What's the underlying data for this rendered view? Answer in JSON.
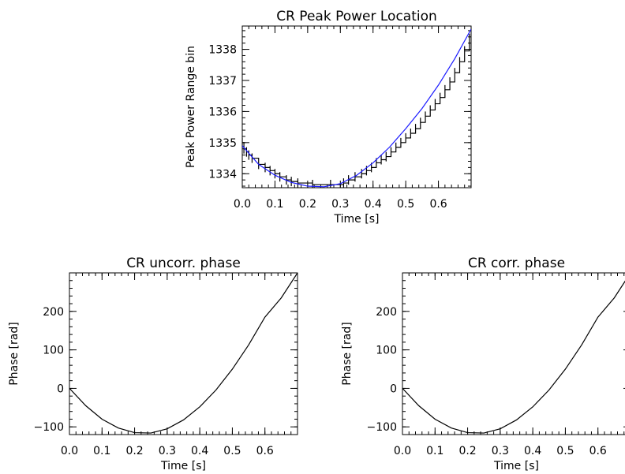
{
  "chart_data": [
    {
      "type": "line",
      "title": "CR Peak Power Location",
      "xlabel": "Time [s]",
      "ylabel": "Peak Power Range bin",
      "xlim": [
        0.0,
        0.7
      ],
      "ylim": [
        1333.55,
        1338.75
      ],
      "xticks": [
        0.0,
        0.1,
        0.2,
        0.3,
        0.4,
        0.5,
        0.6
      ],
      "xtick_labels": [
        "0.0",
        "0.1",
        "0.2",
        "0.3",
        "0.4",
        "0.5",
        "0.6"
      ],
      "yticks": [
        1334,
        1335,
        1336,
        1337,
        1338
      ],
      "ytick_labels": [
        "1334",
        "1335",
        "1336",
        "1337",
        "1338"
      ],
      "series": [
        {
          "color": "#000000",
          "x": [
            0.0,
            0.005,
            0.013,
            0.02,
            0.03,
            0.05,
            0.07,
            0.085,
            0.1,
            0.115,
            0.135,
            0.15,
            0.17,
            0.215,
            0.27,
            0.31,
            0.325,
            0.345,
            0.365,
            0.38,
            0.395,
            0.41,
            0.425,
            0.44,
            0.455,
            0.47,
            0.485,
            0.5,
            0.515,
            0.53,
            0.545,
            0.56,
            0.575,
            0.59,
            0.605,
            0.62,
            0.635,
            0.65,
            0.665,
            0.68,
            0.695
          ],
          "y": [
            1335,
            1334.8,
            1334.7,
            1334.6,
            1334.5,
            1334.3,
            1334.2,
            1334.1,
            1334.0,
            1333.9,
            1333.8,
            1333.75,
            1333.7,
            1333.65,
            1333.65,
            1333.7,
            1333.8,
            1333.9,
            1334.0,
            1334.1,
            1334.2,
            1334.35,
            1334.45,
            1334.55,
            1334.7,
            1334.85,
            1335.0,
            1335.15,
            1335.3,
            1335.45,
            1335.65,
            1335.85,
            1336.05,
            1336.25,
            1336.45,
            1336.7,
            1336.95,
            1337.25,
            1337.6,
            1337.95,
            1338.35
          ]
        },
        {
          "color": "#1a1aff",
          "x": [
            0.0,
            0.05,
            0.1,
            0.15,
            0.2,
            0.25,
            0.3,
            0.35,
            0.4,
            0.45,
            0.5,
            0.55,
            0.6,
            0.65,
            0.7
          ],
          "y": [
            1334.9,
            1334.3,
            1333.95,
            1333.72,
            1333.6,
            1333.58,
            1333.68,
            1333.95,
            1334.35,
            1334.85,
            1335.45,
            1336.1,
            1336.85,
            1337.7,
            1338.65
          ]
        }
      ]
    },
    {
      "type": "line",
      "title": "CR uncorr. phase",
      "xlabel": "Time [s]",
      "ylabel": "Phase [rad]",
      "xlim": [
        0.0,
        0.7
      ],
      "ylim": [
        -120,
        300
      ],
      "xticks": [
        0.0,
        0.1,
        0.2,
        0.3,
        0.4,
        0.5,
        0.6
      ],
      "xtick_labels": [
        "0.0",
        "0.1",
        "0.2",
        "0.3",
        "0.4",
        "0.5",
        "0.6"
      ],
      "yticks": [
        -100,
        0,
        100,
        200
      ],
      "ytick_labels": [
        "−100",
        "0",
        "100",
        "200"
      ],
      "series": [
        {
          "color": "#000000",
          "x": [
            0.0,
            0.05,
            0.1,
            0.15,
            0.2,
            0.25,
            0.3,
            0.35,
            0.4,
            0.45,
            0.5,
            0.55,
            0.6,
            0.65,
            0.7
          ],
          "y": [
            0,
            -45,
            -80,
            -103,
            -115,
            -116,
            -105,
            -82,
            -48,
            -4,
            50,
            113,
            185,
            235,
            300
          ]
        }
      ]
    },
    {
      "type": "line",
      "title": "CR corr. phase",
      "xlabel": "Time [s]",
      "ylabel": "Phase [rad]",
      "xlim": [
        0.0,
        0.7
      ],
      "ylim": [
        -120,
        300
      ],
      "xticks": [
        0.0,
        0.1,
        0.2,
        0.3,
        0.4,
        0.5,
        0.6
      ],
      "xtick_labels": [
        "0.0",
        "0.1",
        "0.2",
        "0.3",
        "0.4",
        "0.5",
        "0.6"
      ],
      "yticks": [
        -100,
        0,
        100,
        200
      ],
      "ytick_labels": [
        "−100",
        "0",
        "100",
        "200"
      ],
      "series": [
        {
          "color": "#000000",
          "x": [
            0.0,
            0.05,
            0.1,
            0.15,
            0.2,
            0.25,
            0.3,
            0.35,
            0.4,
            0.45,
            0.5,
            0.55,
            0.6,
            0.65,
            0.7
          ],
          "y": [
            0,
            -45,
            -80,
            -103,
            -115,
            -116,
            -105,
            -82,
            -48,
            -4,
            50,
            113,
            185,
            235,
            300
          ]
        }
      ]
    }
  ]
}
